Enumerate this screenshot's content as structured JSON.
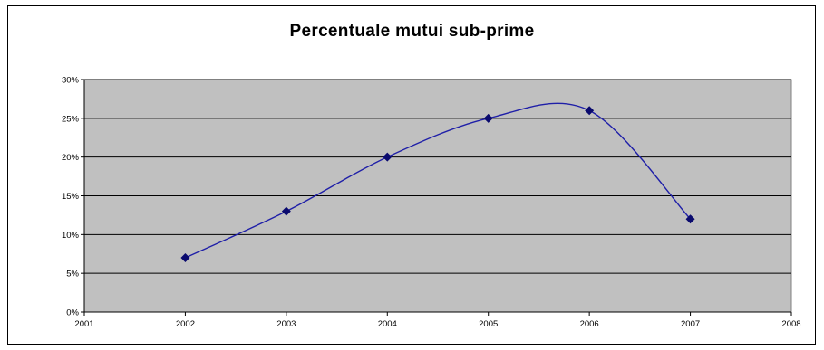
{
  "chart_data": {
    "type": "line",
    "title": "Percentuale mutui sub-prime",
    "xlabel": "",
    "ylabel": "",
    "x": [
      2002,
      2003,
      2004,
      2005,
      2006,
      2007
    ],
    "series": [
      {
        "values": [
          7,
          13,
          20,
          25,
          26,
          12
        ]
      }
    ],
    "xlim": [
      2001,
      2008
    ],
    "ylim": [
      0,
      30
    ],
    "x_ticks": [
      "2001",
      "2002",
      "2003",
      "2004",
      "2005",
      "2006",
      "2007",
      "2008"
    ],
    "y_ticks": [
      "0%",
      "5%",
      "10%",
      "15%",
      "20%",
      "25%",
      "30%"
    ],
    "y_tick_values": [
      0,
      5,
      10,
      15,
      20,
      25,
      30
    ],
    "grid": true,
    "smoothed": true,
    "legend": "none",
    "colors": {
      "plot_background": "#c0c0c0",
      "gridline": "#000000",
      "series_line": "#1f1fa8",
      "marker": "#0a0a6e"
    }
  }
}
